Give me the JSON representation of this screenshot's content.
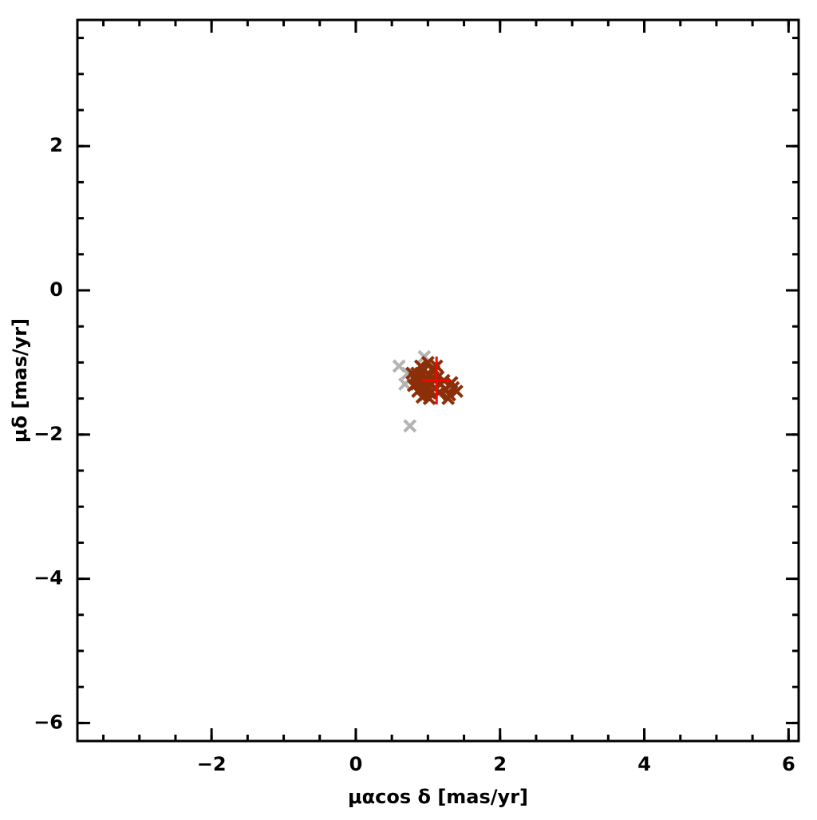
{
  "chart_data": {
    "type": "scatter",
    "xlabel": "μαcos δ [mas/yr]",
    "ylabel": "μδ [mas/yr]",
    "xlim": [
      -3.86,
      6.14
    ],
    "ylim": [
      -6.25,
      3.75
    ],
    "xticks": [
      {
        "value": -2,
        "label": "−2"
      },
      0,
      2,
      4,
      6
    ],
    "yticks": [
      {
        "value": -6,
        "label": "−6"
      },
      {
        "value": -4,
        "label": "−4"
      },
      {
        "value": -2,
        "label": "−2"
      },
      0,
      2
    ],
    "minor_tick_step": 0.5,
    "series": [
      {
        "color": "#b3b3b3",
        "marker": "x",
        "x": [
          0.6,
          0.75,
          0.95,
          0.68,
          0.72
        ],
        "values": [
          -1.05,
          -1.88,
          -0.92,
          -1.3,
          -1.15
        ]
      },
      {
        "color": "#8b2f08",
        "marker": "x",
        "x": [
          0.85,
          0.9,
          0.95,
          1.0,
          1.05,
          0.92,
          0.88,
          0.98,
          1.02,
          1.08,
          1.12,
          0.82,
          0.8,
          0.96,
          1.04,
          1.1,
          1.18,
          1.25,
          1.3,
          1.35,
          1.4,
          1.22,
          0.9,
          1.0,
          0.86,
          0.94,
          1.06,
          0.99,
          1.14,
          0.78,
          1.02,
          0.92,
          1.28,
          1.15,
          0.84,
          0.97,
          1.07,
          1.33
        ],
        "values": [
          -1.15,
          -1.2,
          -1.1,
          -1.25,
          -1.3,
          -1.35,
          -1.28,
          -1.4,
          -1.18,
          -1.12,
          -1.05,
          -1.22,
          -1.32,
          -1.45,
          -1.42,
          -1.35,
          -1.3,
          -1.38,
          -1.45,
          -1.35,
          -1.4,
          -1.25,
          -1.05,
          -1.0,
          -1.4,
          -1.28,
          -1.22,
          -1.33,
          -1.2,
          -1.15,
          -1.5,
          -1.48,
          -1.5,
          -1.42,
          -1.3,
          -1.2,
          -1.08,
          -1.28
        ]
      },
      {
        "color": "#ff0000",
        "marker": "+",
        "x": [
          1.12
        ],
        "values": [
          -1.25
        ]
      }
    ]
  }
}
